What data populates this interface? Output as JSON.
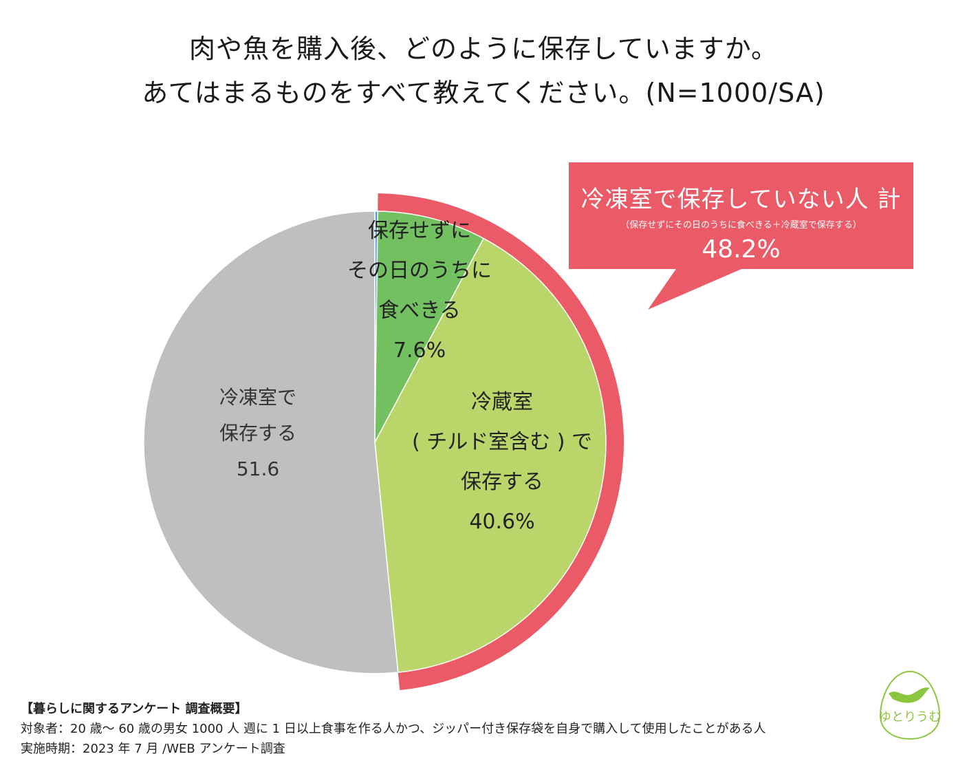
{
  "title": {
    "line1": "肉や魚を購入後、どのように保存していますか。",
    "line2": "あてはまるものをすべて教えてください。(N=1000/SA)"
  },
  "colors": {
    "freezer": "#bfbfbf",
    "fridge": "#bad66b",
    "fresh": "#72c05f",
    "other": "#5b9bd5",
    "highlight": "#ea5a67",
    "logo": "#8cc63f"
  },
  "chart_data": {
    "type": "pie",
    "start_angle_deg": 0,
    "direction": "clockwise",
    "slices": [
      {
        "key": "other",
        "value": 0.2
      },
      {
        "key": "fresh",
        "value": 7.6
      },
      {
        "key": "fridge",
        "value": 40.6
      },
      {
        "key": "freezer",
        "value": 51.6
      }
    ],
    "labels": {
      "fresh": {
        "lines": [
          "保存せずに",
          "その日のうちに",
          "食べきる"
        ],
        "value": "7.6%"
      },
      "fridge": {
        "lines": [
          "冷蔵室",
          "( チルド室含む ) で",
          "保存する"
        ],
        "value": "40.6%"
      },
      "freezer": {
        "lines": [
          "冷凍室で",
          "保存する"
        ],
        "value": "51.6"
      }
    },
    "highlight": {
      "covers": [
        "fresh",
        "fridge"
      ],
      "title": "冷凍室で保存していない人 計",
      "subtitle": "（保存せずにその日のうちに食べきる＋冷蔵室で保存する）",
      "value": "48.2%"
    }
  },
  "footer": {
    "heading": "【暮らしに関するアンケート 調査概要】",
    "target": "対象者：20 歳～ 60 歳の男女 1000 人 週に 1 日以上食事を作る人かつ、ジッパー付き保存袋を自身で購入して使用したことがある人",
    "period": "実施時期：2023 年 7 月 /WEB アンケート調査"
  },
  "logo": {
    "text": "ゆとりうむ",
    "icon": "bird-icon"
  }
}
